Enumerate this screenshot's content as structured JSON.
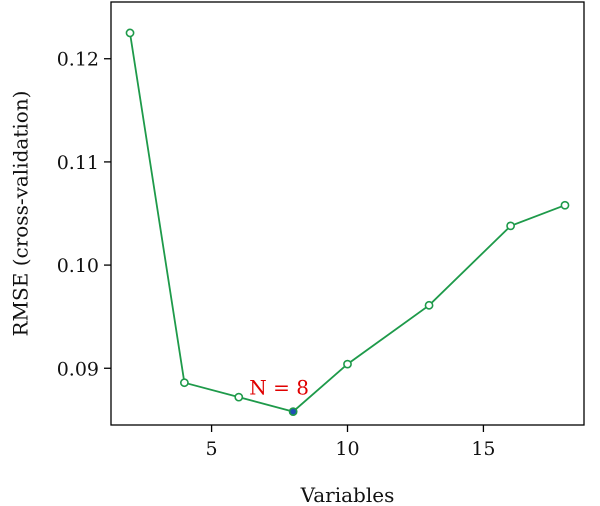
{
  "chart_data": {
    "type": "line",
    "title": "",
    "xlabel": "Variables",
    "ylabel": "RMSE (cross-validation)",
    "xlim": [
      1.3,
      18.7
    ],
    "ylim": [
      0.0845,
      0.1255
    ],
    "xticks": [
      5,
      10,
      15
    ],
    "xtick_labels": [
      "5",
      "10",
      "15"
    ],
    "yticks": [
      0.09,
      0.1,
      0.11,
      0.12
    ],
    "ytick_labels": [
      "0.09",
      "0.10",
      "0.11",
      "0.12"
    ],
    "grid": false,
    "series": [
      {
        "x": [
          2,
          4,
          6,
          8,
          10,
          13,
          16,
          18
        ],
        "y": [
          0.1225,
          0.0886,
          0.0872,
          0.0858,
          0.0904,
          0.0961,
          0.1038,
          0.1058
        ],
        "color": "#1e9a4a",
        "marker": "open-circle"
      }
    ],
    "highlight": {
      "x": 8,
      "y": 0.0858,
      "color": "#1f4fb5"
    },
    "annotations": [
      {
        "text": "N = 8",
        "x": 8,
        "y": 0.0858,
        "color": "#e00000"
      }
    ]
  }
}
